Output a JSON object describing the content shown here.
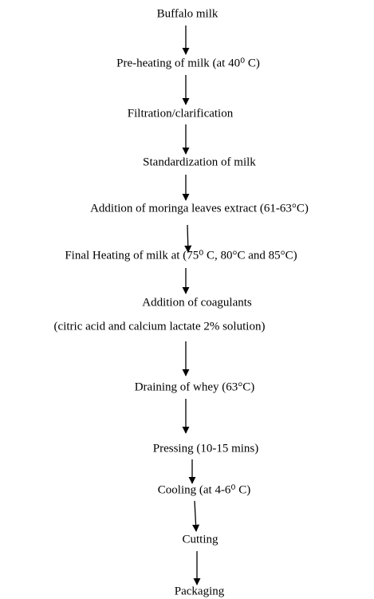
{
  "nodes": [
    {
      "label": "Buffalo milk"
    },
    {
      "label": "Pre-heating of milk (at 40⁰ C)"
    },
    {
      "label": "Filtration/clarification"
    },
    {
      "label": "Standardization of milk"
    },
    {
      "label": "Addition of moringa leaves extract (61-63°C)"
    },
    {
      "label": "Final Heating of milk at (75⁰ C, 80°C and 85°C)"
    },
    {
      "label": "Addition of coagulants",
      "detail": "(citric acid and calcium lactate 2% solution)"
    },
    {
      "label": "Draining of whey (63°C)"
    },
    {
      "label": "Pressing (10-15 mins)"
    },
    {
      "label": "Cooling (at 4-6⁰ C)"
    },
    {
      "label": "Cutting"
    },
    {
      "label": "Packaging"
    }
  ]
}
